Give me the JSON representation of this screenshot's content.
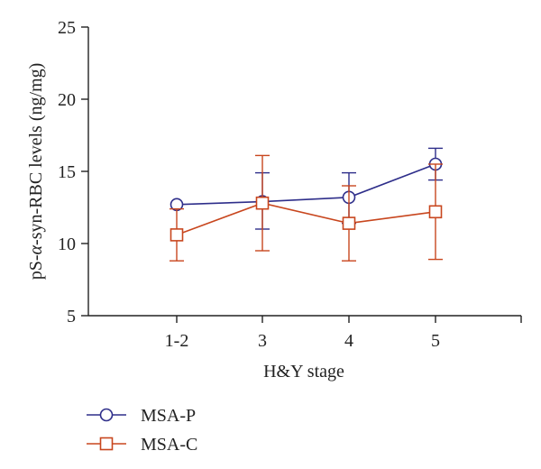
{
  "chart_data": {
    "type": "line",
    "title": "",
    "xlabel": "H&Y stage",
    "ylabel_parts": [
      "pS-",
      "α",
      "-syn-RBC levels (ng/mg)"
    ],
    "categories": [
      "1-2",
      "3",
      "4",
      "5"
    ],
    "ylim": [
      5,
      25
    ],
    "yticks": [
      5,
      10,
      15,
      20,
      25
    ],
    "grid": false,
    "legend_position": "bottom-left",
    "series": [
      {
        "name": "MSA-P",
        "marker": "circle",
        "color": "#2e2e8a",
        "values": [
          12.7,
          12.9,
          13.2,
          15.5
        ],
        "err_upper": [
          12.7,
          14.9,
          14.9,
          16.6
        ],
        "err_lower": [
          12.7,
          11.0,
          11.4,
          14.4
        ]
      },
      {
        "name": "MSA-C",
        "marker": "square",
        "color": "#c8461e",
        "values": [
          10.6,
          12.8,
          11.4,
          12.2
        ],
        "err_upper": [
          12.4,
          16.1,
          14.0,
          15.5
        ],
        "err_lower": [
          8.8,
          9.5,
          8.8,
          8.9
        ]
      }
    ]
  }
}
